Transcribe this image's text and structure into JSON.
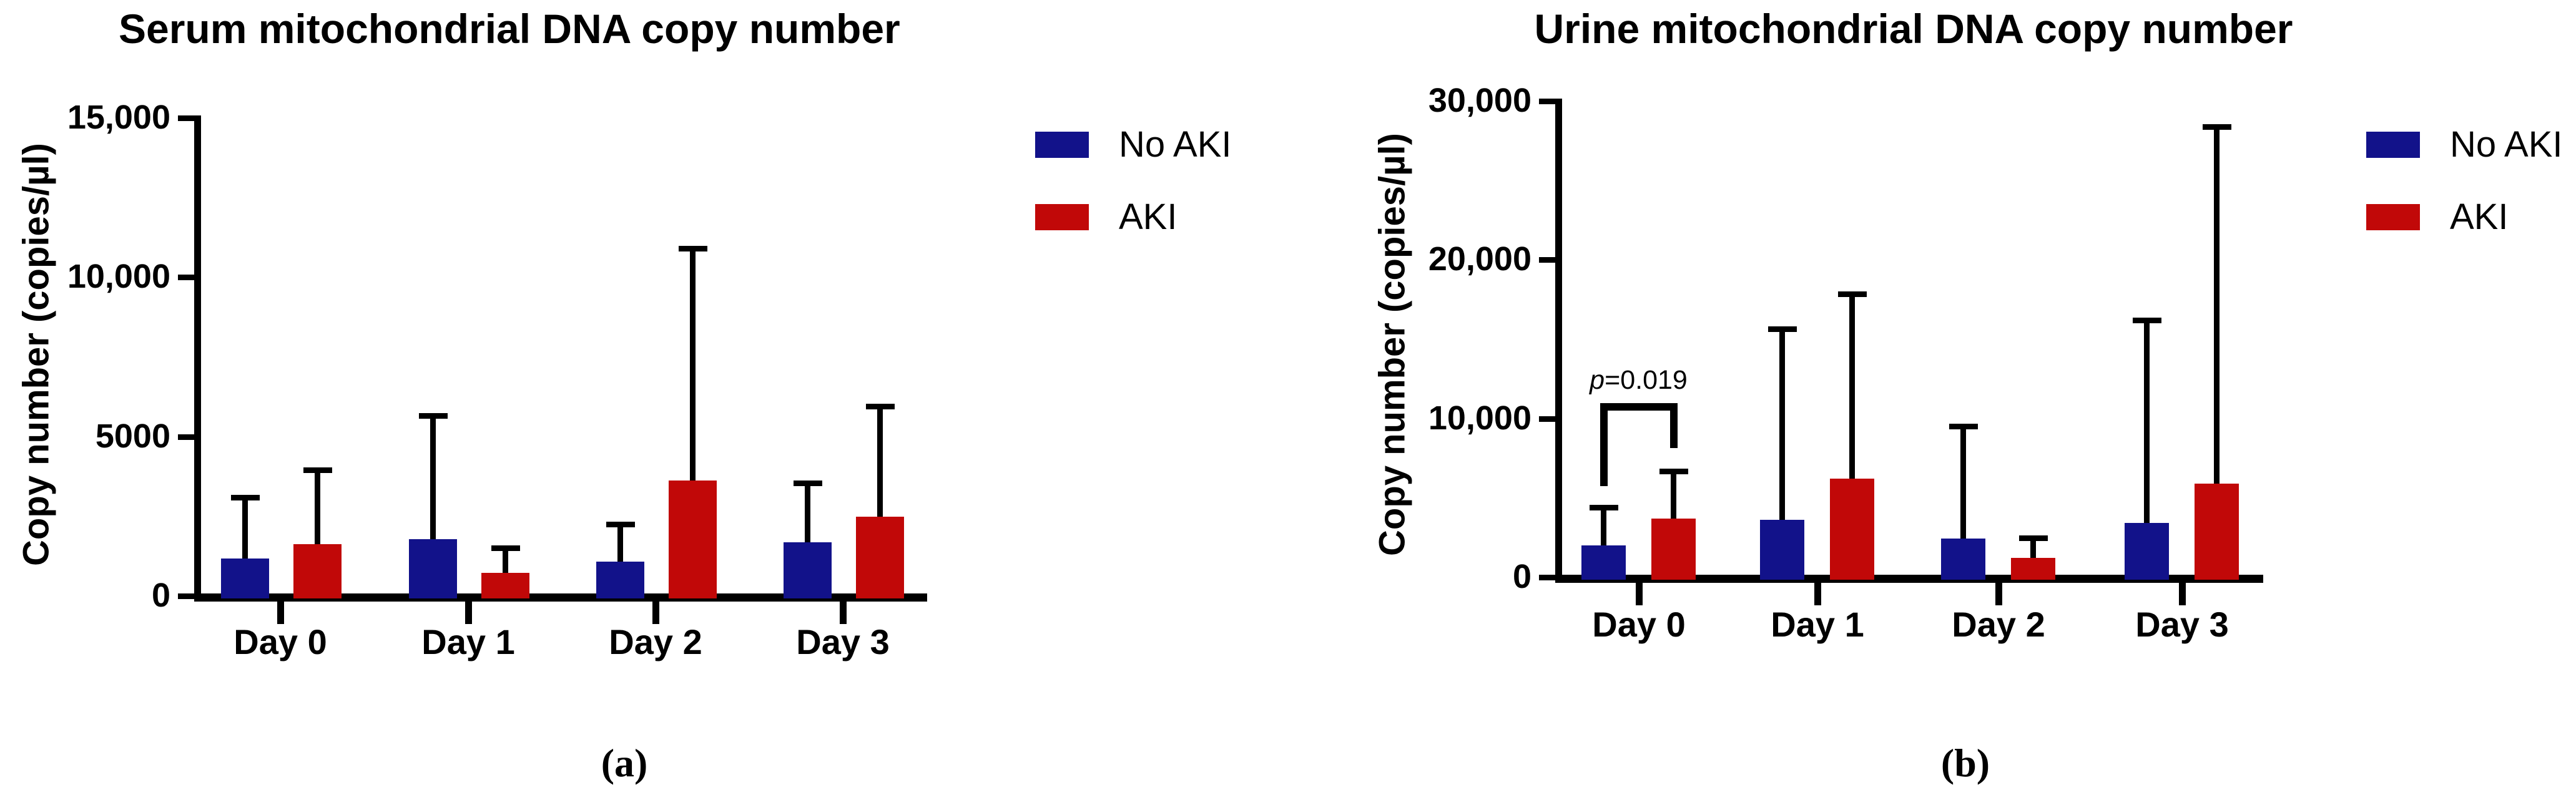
{
  "figure": {
    "background": "#ffffff",
    "axis_color": "#000000",
    "text_color": "#000000",
    "series_colors": {
      "no_aki": "#12128A",
      "aki": "#C10808"
    }
  },
  "chart_data": [
    {
      "type": "bar",
      "panel": "a",
      "caption": "(a)",
      "title": "Serum mitochondrial DNA copy number",
      "ylabel": "Copy number (copies/µl)",
      "xlabel": "",
      "ylim": [
        0,
        15000
      ],
      "grid": false,
      "yticks": [
        {
          "value": 0,
          "label": "0"
        },
        {
          "value": 5000,
          "label": "5000"
        },
        {
          "value": 10000,
          "label": "10,000"
        },
        {
          "value": 15000,
          "label": "15,000"
        }
      ],
      "categories": [
        "Day 0",
        "Day 1",
        "Day 2",
        "Day 3"
      ],
      "series": [
        {
          "name": "No AKI",
          "color_key": "no_aki",
          "values": [
            1100,
            1700,
            1000,
            1600
          ],
          "errors_plus": [
            2000,
            3950,
            1250,
            1950
          ]
        },
        {
          "name": "AKI",
          "color_key": "aki",
          "values": [
            1550,
            650,
            3550,
            2400
          ],
          "errors_plus": [
            2400,
            850,
            7350,
            3550
          ]
        }
      ],
      "legend": {
        "position": "right-top",
        "entries": [
          "No AKI",
          "AKI"
        ]
      }
    },
    {
      "type": "bar",
      "panel": "b",
      "caption": "(b)",
      "title": "Urine mitochondrial DNA copy number",
      "ylabel": "Copy number (copies/µl)",
      "xlabel": "",
      "ylim": [
        0,
        30000
      ],
      "grid": false,
      "yticks": [
        {
          "value": 0,
          "label": "0"
        },
        {
          "value": 10000,
          "label": "10,000"
        },
        {
          "value": 20000,
          "label": "20,000"
        },
        {
          "value": 30000,
          "label": "30,000"
        }
      ],
      "categories": [
        "Day 0",
        "Day 1",
        "Day 2",
        "Day 3"
      ],
      "series": [
        {
          "name": "No AKI",
          "color_key": "no_aki",
          "values": [
            1850,
            3450,
            2300,
            3250
          ],
          "errors_plus": [
            2550,
            12200,
            7200,
            12950
          ]
        },
        {
          "name": "AKI",
          "color_key": "aki",
          "values": [
            3550,
            6050,
            1050,
            5750
          ],
          "errors_plus": [
            3150,
            11800,
            1430,
            22650
          ]
        }
      ],
      "legend": {
        "position": "right-top",
        "entries": [
          "No AKI",
          "AKI"
        ]
      },
      "annotation": {
        "text": "p=0.019",
        "italic": "p",
        "rest": "=0.019",
        "category": "Day 0",
        "between": [
          "No AKI",
          "AKI"
        ],
        "bracket_top_value": 10800,
        "left_drop_value": 5600,
        "right_drop_value": 8000
      }
    }
  ]
}
